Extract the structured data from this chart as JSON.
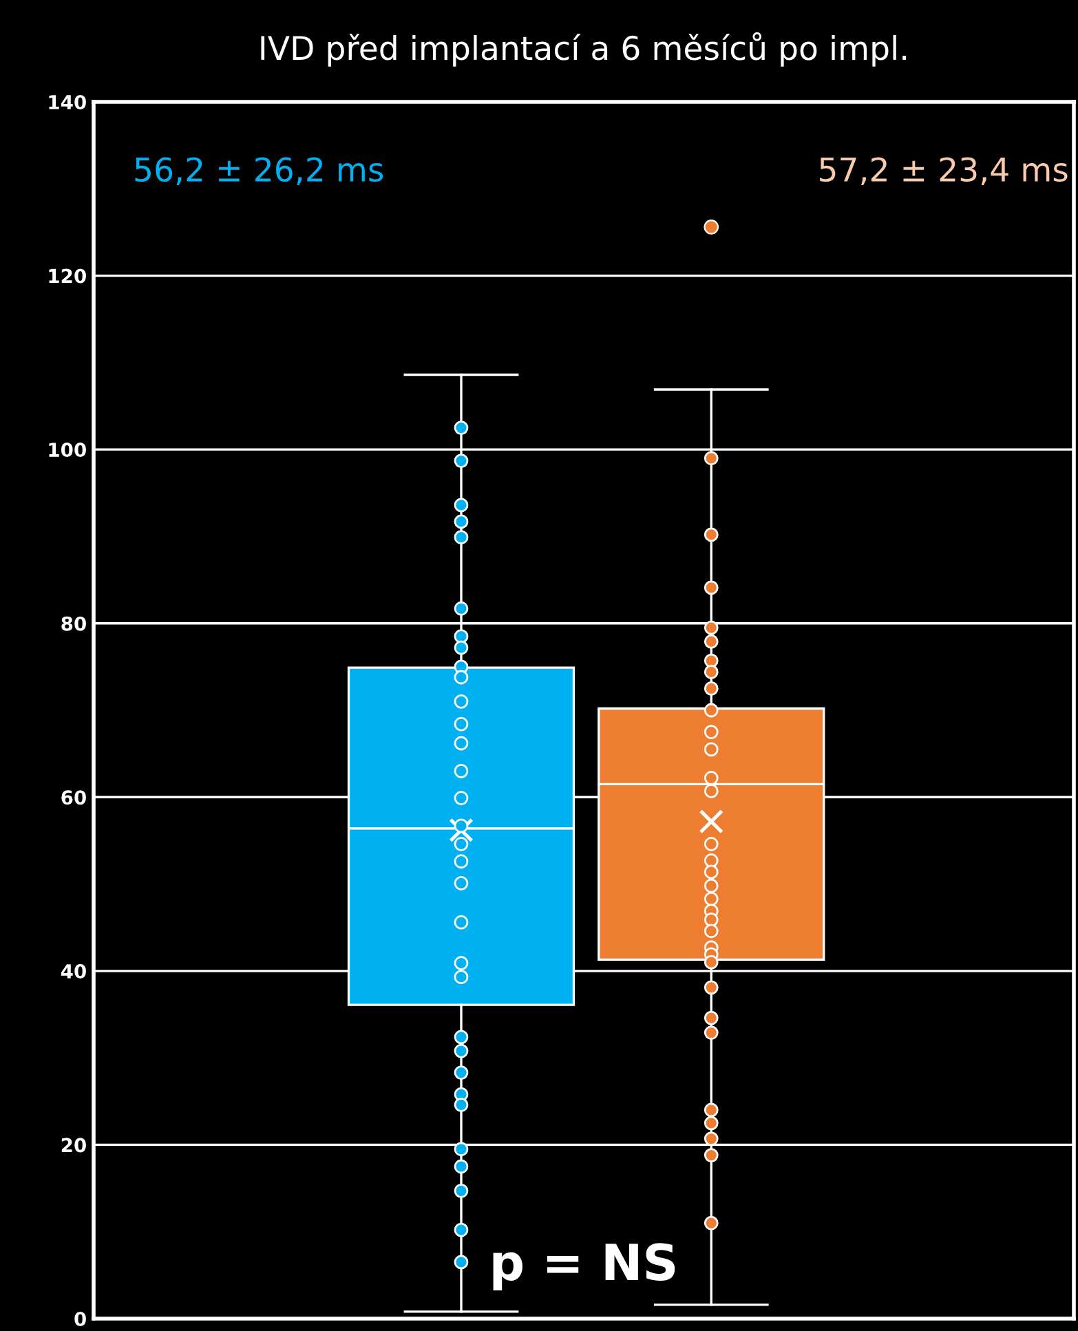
{
  "chart_data": {
    "type": "box",
    "title": "IVD před implantací a 6 měsíců po impl.",
    "categories": [
      null,
      null
    ],
    "colors": [
      "#00b0f0",
      "#ed7d31"
    ],
    "boxes": [
      {
        "low": 0.8,
        "q1": 36.1,
        "median": 56.4,
        "q3": 74.9,
        "high": 108.6,
        "mean": 56.2
      },
      {
        "low": 1.6,
        "q1": 41.3,
        "median": 61.5,
        "q3": 70.2,
        "high": 106.9,
        "mean": 57.2,
        "outliers": [
          125.6
        ]
      }
    ],
    "series": [
      {
        "type": "scatter",
        "colors": [
          "#00b0f0",
          "#ed7d31"
        ],
        "values": [
          102.5,
          99.0
        ]
      },
      {
        "type": "scatter",
        "colors": [
          "#00b0f0",
          "#ed7d31"
        ],
        "values": [
          98.7,
          90.2
        ]
      },
      {
        "type": "scatter",
        "colors": [
          "#00b0f0",
          "#ed7d31"
        ],
        "values": [
          93.6,
          84.1
        ]
      },
      {
        "type": "scatter",
        "colors": [
          "#00b0f0",
          "#ed7d31"
        ],
        "values": [
          91.7,
          79.5
        ]
      },
      {
        "type": "scatter",
        "colors": [
          "#00b0f0",
          "#ed7d31"
        ],
        "values": [
          89.9,
          77.9
        ]
      },
      {
        "type": "scatter",
        "colors": [
          "#00b0f0",
          "#ed7d31"
        ],
        "values": [
          81.7,
          75.7
        ]
      },
      {
        "type": "scatter",
        "colors": [
          "#00b0f0",
          "#ed7d31"
        ],
        "values": [
          78.5,
          74.4
        ]
      },
      {
        "type": "scatter",
        "colors": [
          "#00b0f0",
          "#ed7d31"
        ],
        "values": [
          77.2,
          72.5
        ]
      },
      {
        "type": "scatter",
        "colors": [
          "#00b0f0",
          "#ed7d31"
        ],
        "values": [
          75.0,
          70.0
        ]
      },
      {
        "type": "scatter",
        "colors": [
          "#00b0f0",
          "#ed7d31"
        ],
        "values": [
          73.8,
          67.5
        ]
      },
      {
        "type": "scatter",
        "colors": [
          "#00b0f0",
          "#ed7d31"
        ],
        "values": [
          71.0,
          65.5
        ]
      },
      {
        "type": "scatter",
        "colors": [
          "#00b0f0",
          "#ed7d31"
        ],
        "values": [
          68.4,
          62.2
        ]
      },
      {
        "type": "scatter",
        "colors": [
          "#00b0f0",
          "#ed7d31"
        ],
        "values": [
          66.2,
          60.7
        ]
      },
      {
        "type": "scatter",
        "colors": [
          "#00b0f0",
          "#ed7d31"
        ],
        "values": [
          63.0,
          54.6
        ]
      },
      {
        "type": "scatter",
        "colors": [
          "#00b0f0",
          "#ed7d31"
        ],
        "values": [
          59.9,
          52.7
        ]
      },
      {
        "type": "scatter",
        "colors": [
          "#00b0f0",
          "#ed7d31"
        ],
        "values": [
          56.7,
          51.4
        ]
      },
      {
        "type": "scatter",
        "colors": [
          "#00b0f0",
          "#ed7d31"
        ],
        "values": [
          54.6,
          49.8
        ]
      },
      {
        "type": "scatter",
        "colors": [
          "#00b0f0",
          "#ed7d31"
        ],
        "values": [
          52.6,
          48.3
        ]
      },
      {
        "type": "scatter",
        "colors": [
          "#00b0f0",
          "#ed7d31"
        ],
        "values": [
          50.1,
          46.9
        ]
      },
      {
        "type": "scatter",
        "colors": [
          "#00b0f0",
          "#ed7d31"
        ],
        "values": [
          45.6,
          45.9
        ]
      },
      {
        "type": "scatter",
        "colors": [
          "#00b0f0",
          "#ed7d31"
        ],
        "values": [
          40.9,
          44.6
        ]
      },
      {
        "type": "scatter",
        "colors": [
          "#00b0f0",
          "#ed7d31"
        ],
        "values": [
          39.3,
          42.7
        ]
      },
      {
        "type": "scatter",
        "colors": [
          "#00b0f0",
          "#ed7d31"
        ],
        "values": [
          32.4,
          41.9
        ]
      },
      {
        "type": "scatter",
        "colors": [
          "#00b0f0",
          "#ed7d31"
        ],
        "values": [
          30.8,
          41.0
        ]
      },
      {
        "type": "scatter",
        "colors": [
          "#00b0f0",
          "#ed7d31"
        ],
        "values": [
          28.3,
          38.1
        ]
      },
      {
        "type": "scatter",
        "colors": [
          "#00b0f0",
          "#ed7d31"
        ],
        "values": [
          25.8,
          34.6
        ]
      },
      {
        "type": "scatter",
        "colors": [
          "#00b0f0",
          "#ed7d31"
        ],
        "values": [
          24.6,
          32.9
        ]
      },
      {
        "type": "scatter",
        "colors": [
          "#00b0f0",
          "#ed7d31"
        ],
        "values": [
          19.5,
          24.0
        ]
      },
      {
        "type": "scatter",
        "colors": [
          "#00b0f0",
          "#ed7d31"
        ],
        "values": [
          17.5,
          22.5
        ]
      },
      {
        "type": "scatter",
        "colors": [
          "#00b0f0",
          "#ed7d31"
        ],
        "values": [
          14.7,
          20.7
        ]
      },
      {
        "type": "scatter",
        "colors": [
          "#00b0f0",
          "#ed7d31"
        ],
        "values": [
          10.2,
          18.8
        ]
      },
      {
        "type": "scatter",
        "colors": [
          "#00b0f0",
          "#ed7d31"
        ],
        "values": [
          6.5,
          11.0
        ]
      }
    ],
    "annotations": [
      "56,2 ± 26,2 ms",
      "57,2 ± 23,4 ms",
      "p = NS"
    ],
    "ylim": [
      0,
      140
    ],
    "yticks": [
      0,
      20,
      40,
      60,
      80,
      100,
      120,
      140
    ],
    "grid": "y",
    "marker": "circle",
    "tick_labels": "y",
    "legend": false
  }
}
